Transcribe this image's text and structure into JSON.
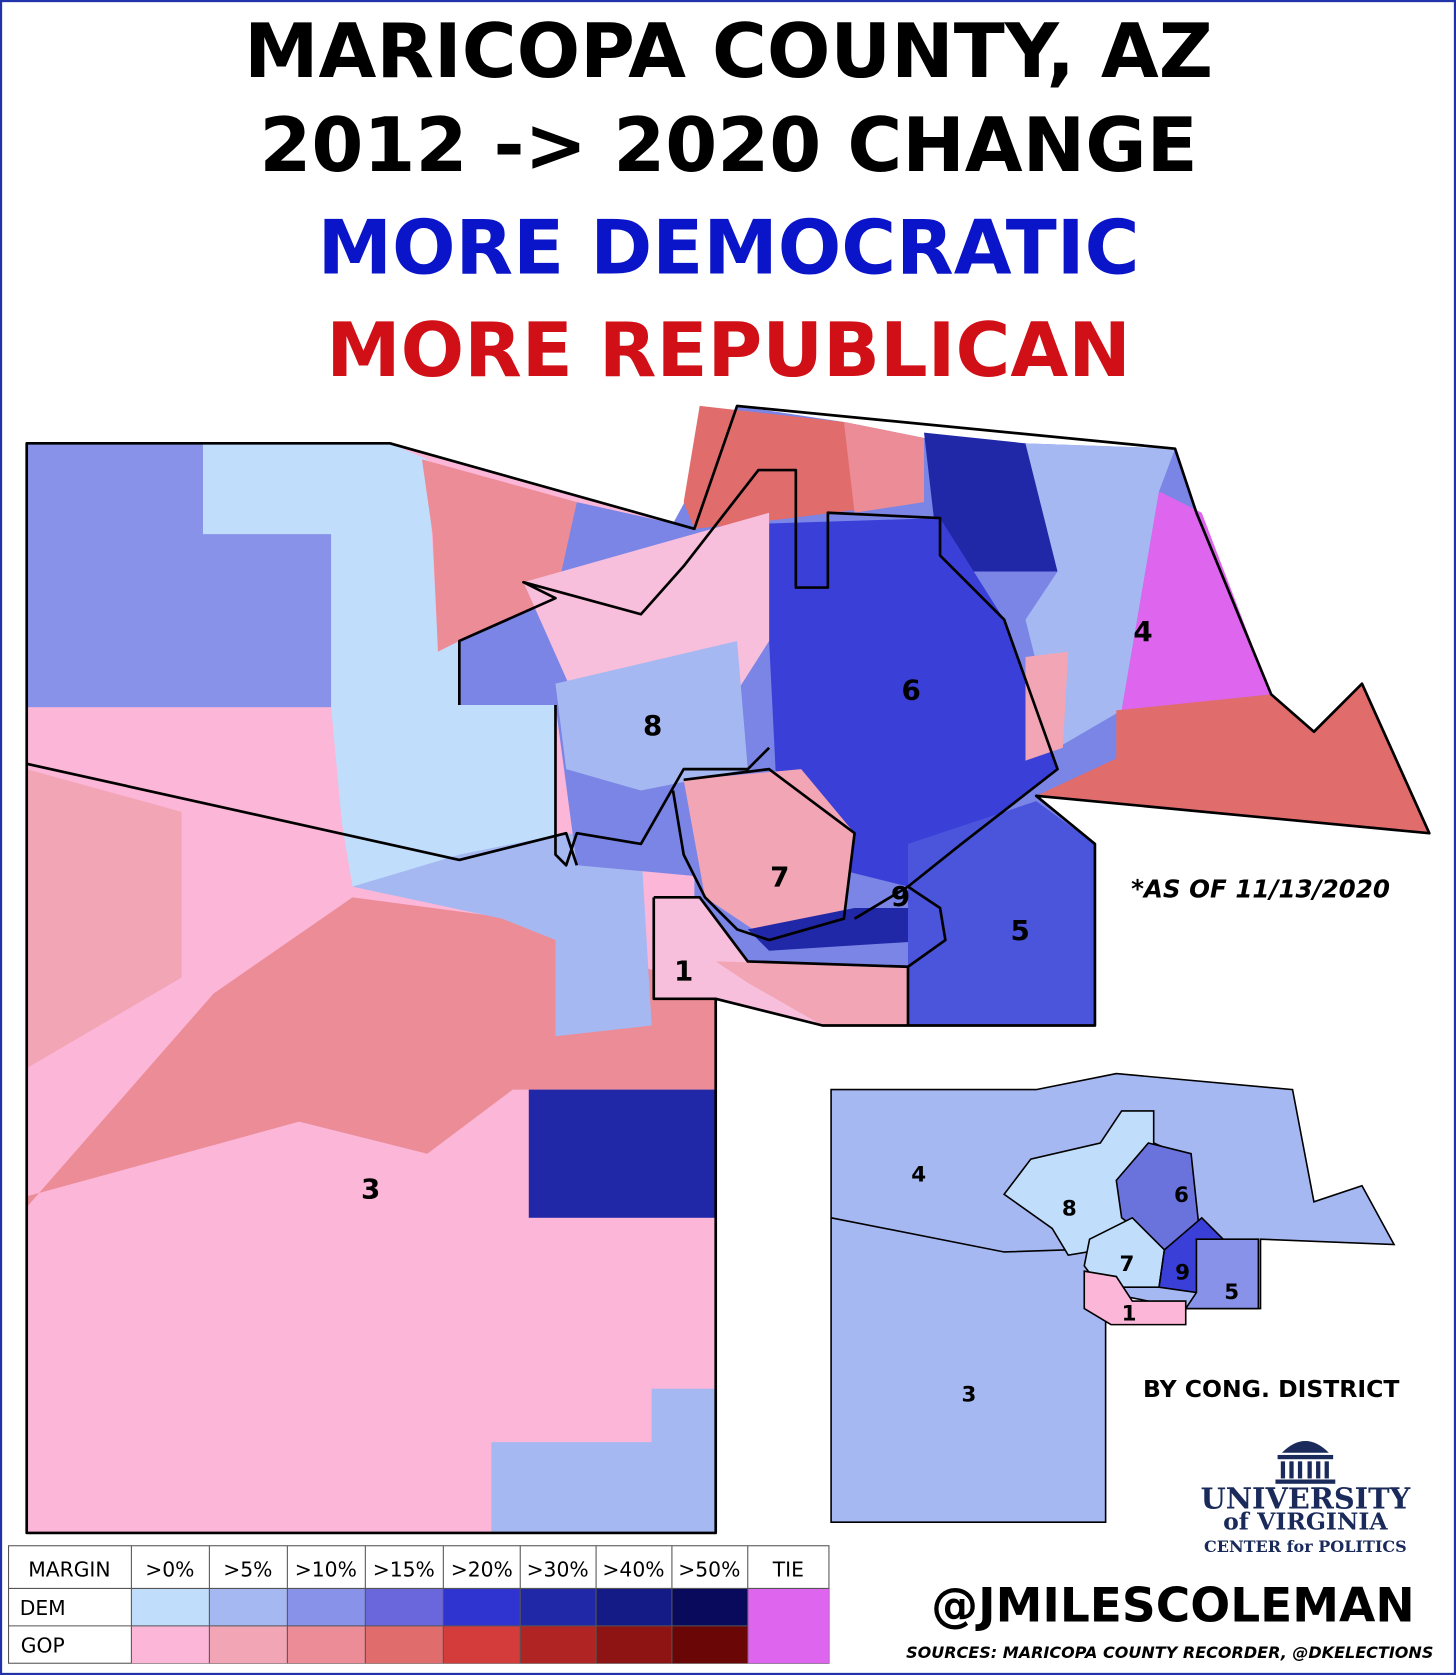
{
  "header": {
    "line1": "MARICOPA COUNTY, AZ",
    "line2": "2012 -> 2020 CHANGE",
    "line3": "MORE DEMOCRATIC",
    "line4": "MORE REPUBLICAN"
  },
  "note": "*AS OF 11/13/2020",
  "map": {
    "district_labels": [
      "1",
      "3",
      "4",
      "5",
      "6",
      "7",
      "8",
      "9"
    ]
  },
  "inset": {
    "title": "BY CONG. DISTRICT",
    "district_labels": [
      "1",
      "3",
      "4",
      "5",
      "6",
      "7",
      "8",
      "9"
    ]
  },
  "legend": {
    "header": [
      "MARGIN",
      ">0%",
      ">5%",
      ">10%",
      ">15%",
      ">20%",
      ">30%",
      ">40%",
      ">50%",
      "TIE"
    ],
    "rows": [
      "DEM",
      "GOP"
    ]
  },
  "logo": {
    "line1": "UNIVERSITY",
    "line2": "of VIRGINIA",
    "line3": "CENTER for POLITICS"
  },
  "credit": "@JMILESCOLEMAN",
  "sources": "SOURCES: MARICOPA COUNTY RECORDER, @DKELECTIONS"
}
